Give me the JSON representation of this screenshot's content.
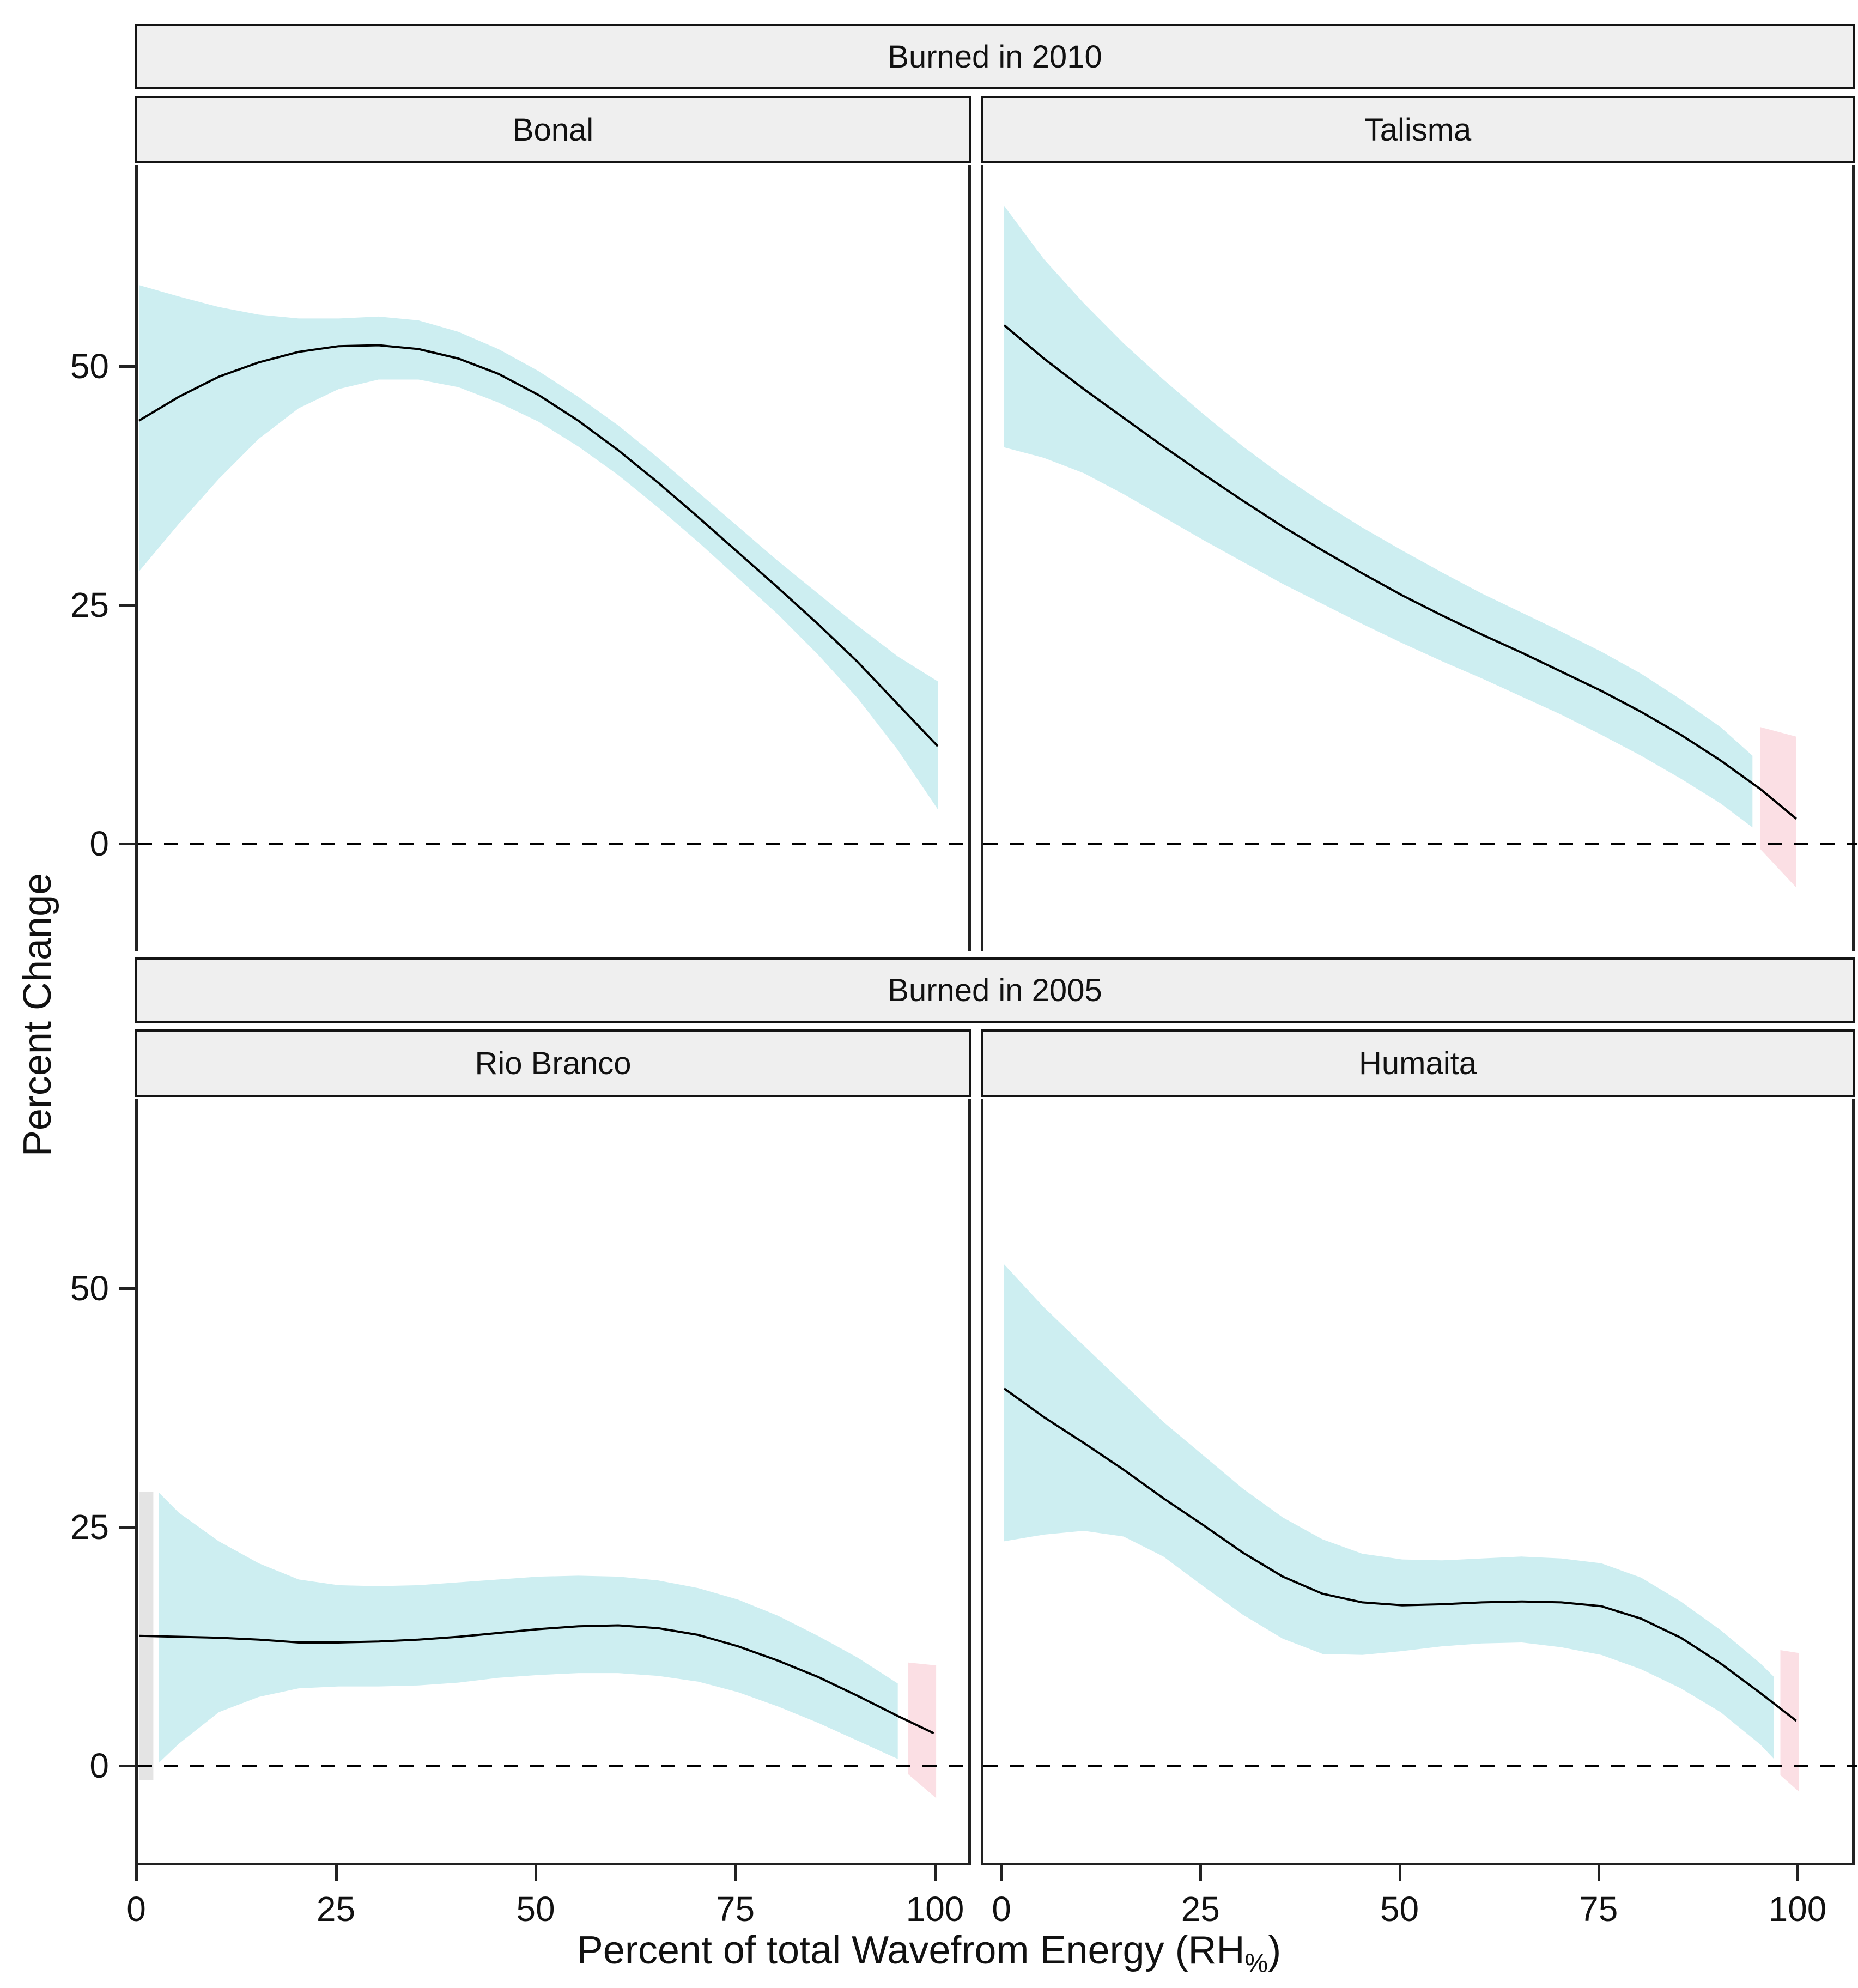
{
  "figure": {
    "ylabel": "Percent Change",
    "xlabel_main": "Percent of total Wavefrom Energy (RH",
    "xlabel_sub": "%",
    "xlabel_close": ")"
  },
  "chart_data": {
    "type": "area",
    "description": "Four-facet smoothed regression (GAM-style) plot: percent change vs percent of total waveform energy, fit line with confidence ribbons; dashed reference line at 0.",
    "xlabel": "Percent of total Wavefrom Energy (RH%)",
    "ylabel": "Percent Change",
    "x_ticks": {
      "values": [
        0,
        25,
        50,
        75,
        100
      ],
      "labels": [
        "0",
        "25",
        "50",
        "75",
        "100"
      ]
    },
    "y_ticks": {
      "values": [
        50,
        25,
        0
      ],
      "labels": [
        "50",
        "25",
        "0"
      ]
    },
    "ylim": [
      -11,
      71
    ],
    "xlim": [
      -0.2,
      105
    ],
    "zero_line": 0,
    "grid": "off",
    "legend": "none",
    "colors": {
      "ribbon": "#cdeef1",
      "pink": "#fbdfe4",
      "grey": "#e4e4e4",
      "line": "#000000",
      "strip_fill": "#efefef"
    },
    "row_labels": [
      "Burned in 2010",
      "Burned in 2005"
    ],
    "facets": [
      {
        "group": "Burned in 2010",
        "site": "Bonal",
        "x": [
          0,
          5,
          10,
          15,
          20,
          25,
          30,
          35,
          40,
          45,
          50,
          55,
          60,
          65,
          70,
          75,
          80,
          85,
          90,
          95,
          100
        ],
        "fit": [
          44.3,
          46.8,
          48.9,
          50.4,
          51.5,
          52.1,
          52.2,
          51.8,
          50.8,
          49.2,
          47.0,
          44.3,
          41.2,
          37.8,
          34.2,
          30.5,
          26.8,
          23.0,
          19.0,
          14.6,
          10.2
        ],
        "ribbon": {
          "x": [
            0,
            5,
            10,
            15,
            20,
            25,
            30,
            35,
            40,
            45,
            50,
            55,
            60,
            65,
            70,
            75,
            80,
            85,
            90,
            95,
            100
          ],
          "upper": [
            58.5,
            57.3,
            56.2,
            55.4,
            55.0,
            55.0,
            55.2,
            54.8,
            53.6,
            51.8,
            49.5,
            46.8,
            43.8,
            40.4,
            36.8,
            33.2,
            29.6,
            26.2,
            22.8,
            19.6,
            17.0
          ],
          "lower": [
            28.5,
            33.5,
            38.2,
            42.4,
            45.6,
            47.6,
            48.6,
            48.6,
            47.8,
            46.2,
            44.2,
            41.6,
            38.6,
            35.2,
            31.6,
            27.8,
            24.0,
            19.8,
            15.2,
            9.8,
            3.6
          ]
        },
        "pink_ribbon": null,
        "grey_ribbon": null
      },
      {
        "group": "Burned in 2010",
        "site": "Talisma",
        "x": [
          0,
          5,
          10,
          15,
          20,
          25,
          30,
          35,
          40,
          45,
          50,
          55,
          60,
          65,
          70,
          75,
          80,
          85,
          90,
          95,
          99.5
        ],
        "fit": [
          54.3,
          50.8,
          47.6,
          44.6,
          41.6,
          38.7,
          35.9,
          33.2,
          30.7,
          28.3,
          26.0,
          23.9,
          21.9,
          20.0,
          18.0,
          16.0,
          13.8,
          11.4,
          8.7,
          5.7,
          2.6
        ],
        "ribbon": {
          "x": [
            0,
            5,
            10,
            15,
            20,
            25,
            30,
            35,
            40,
            45,
            50,
            55,
            60,
            65,
            70,
            75,
            80,
            85,
            90,
            94
          ],
          "upper": [
            66.8,
            61.2,
            56.6,
            52.4,
            48.6,
            45.0,
            41.6,
            38.5,
            35.7,
            33.1,
            30.7,
            28.4,
            26.2,
            24.2,
            22.2,
            20.1,
            17.8,
            15.1,
            12.2,
            9.2
          ],
          "lower": [
            41.5,
            40.4,
            38.8,
            36.6,
            34.2,
            31.8,
            29.5,
            27.2,
            25.1,
            23.0,
            21.0,
            19.1,
            17.3,
            15.4,
            13.5,
            11.4,
            9.2,
            6.8,
            4.2,
            1.7
          ]
        },
        "pink_ribbon": {
          "x": [
            95,
            99.5
          ],
          "upper": [
            12.2,
            11.2
          ],
          "lower": [
            -0.6,
            -4.6
          ]
        },
        "grey_ribbon": null
      },
      {
        "group": "Burned in 2005",
        "site": "Rio Branco",
        "x": [
          0,
          5,
          10,
          15,
          20,
          25,
          30,
          35,
          40,
          45,
          50,
          55,
          60,
          65,
          70,
          75,
          80,
          85,
          90,
          95,
          99.5
        ],
        "fit": [
          13.6,
          13.5,
          13.4,
          13.2,
          12.9,
          12.9,
          13.0,
          13.2,
          13.5,
          13.9,
          14.3,
          14.6,
          14.7,
          14.4,
          13.7,
          12.5,
          11.0,
          9.3,
          7.3,
          5.2,
          3.4
        ],
        "ribbon": {
          "x": [
            2.5,
            5,
            10,
            15,
            20,
            25,
            30,
            35,
            40,
            45,
            50,
            55,
            60,
            65,
            70,
            75,
            80,
            85,
            90,
            95
          ],
          "upper": [
            28.6,
            26.5,
            23.5,
            21.2,
            19.5,
            18.9,
            18.8,
            18.9,
            19.2,
            19.5,
            19.8,
            19.9,
            19.8,
            19.4,
            18.6,
            17.4,
            15.7,
            13.6,
            11.3,
            8.6
          ],
          "lower": [
            0.3,
            2.3,
            5.6,
            7.2,
            8.1,
            8.3,
            8.3,
            8.4,
            8.7,
            9.2,
            9.5,
            9.7,
            9.7,
            9.4,
            8.8,
            7.7,
            6.2,
            4.5,
            2.6,
            0.7
          ]
        },
        "pink_ribbon": {
          "x": [
            96.3,
            99.8
          ],
          "upper": [
            10.8,
            10.5
          ],
          "lower": [
            -0.9,
            -3.4
          ]
        },
        "grey_ribbon": {
          "x": [
            0,
            1.8
          ],
          "upper": [
            28.7,
            28.7
          ],
          "lower": [
            -1.5,
            -1.5
          ]
        }
      },
      {
        "group": "Burned in 2005",
        "site": "Humaita",
        "x": [
          0,
          5,
          10,
          15,
          20,
          25,
          30,
          35,
          40,
          45,
          50,
          55,
          60,
          65,
          70,
          75,
          80,
          85,
          90,
          95,
          99.5
        ],
        "fit": [
          39.5,
          36.5,
          33.8,
          31.0,
          28.0,
          25.2,
          22.3,
          19.8,
          18.0,
          17.1,
          16.8,
          16.9,
          17.1,
          17.2,
          17.1,
          16.7,
          15.4,
          13.4,
          10.7,
          7.6,
          4.7
        ],
        "ribbon": {
          "x": [
            0,
            5,
            10,
            15,
            20,
            25,
            30,
            35,
            40,
            45,
            50,
            55,
            60,
            65,
            70,
            75,
            80,
            85,
            90,
            95,
            96.7
          ],
          "upper": [
            52.5,
            48.0,
            44.0,
            40.0,
            36.0,
            32.5,
            29.0,
            26.0,
            23.7,
            22.2,
            21.6,
            21.5,
            21.7,
            21.9,
            21.7,
            21.2,
            19.7,
            17.2,
            14.2,
            10.7,
            9.3
          ],
          "lower": [
            23.5,
            24.2,
            24.6,
            24.0,
            21.9,
            18.8,
            15.8,
            13.3,
            11.7,
            11.6,
            12.0,
            12.5,
            12.8,
            12.9,
            12.4,
            11.6,
            10.1,
            8.1,
            5.6,
            2.2,
            0.7
          ]
        },
        "pink_ribbon": {
          "x": [
            97.5,
            99.8
          ],
          "upper": [
            12.1,
            11.8
          ],
          "lower": [
            -1.0,
            -2.7
          ]
        },
        "grey_ribbon": null
      }
    ]
  }
}
